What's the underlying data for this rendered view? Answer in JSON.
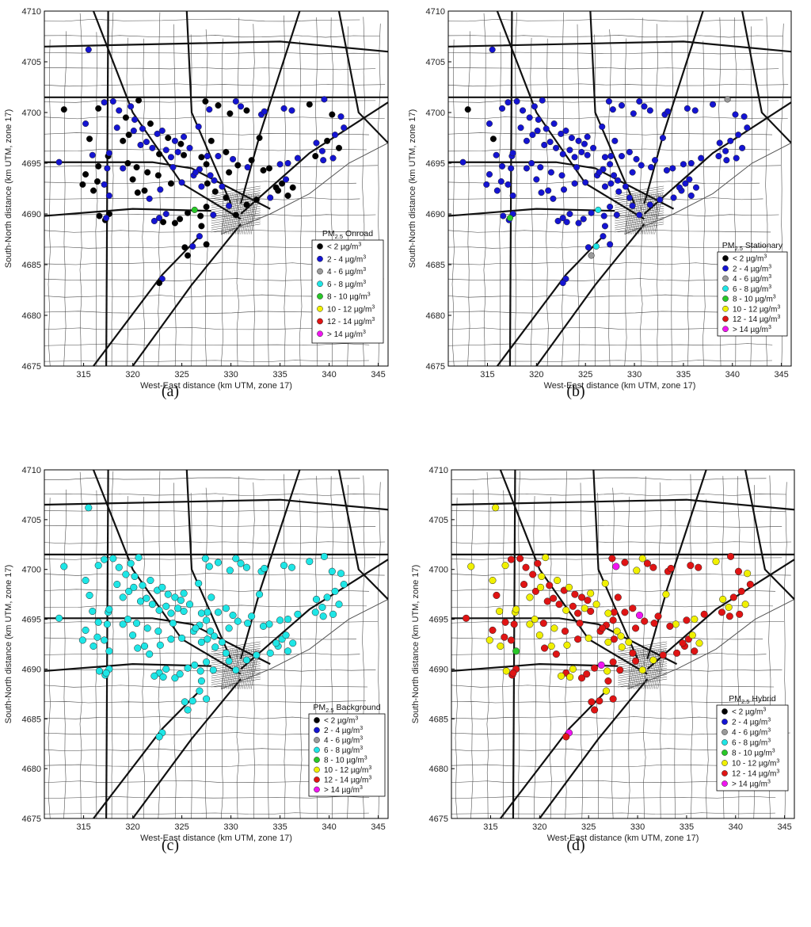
{
  "units_label": "µg/m",
  "units_power": "3",
  "pollutant": "PM",
  "pollutant_sub": "2.5",
  "axis": {
    "xlabel": "West-East distance (km UTM, zone 17)",
    "ylabel": "South-North distance (km UTM, zone 17)",
    "xlim": [
      311,
      346
    ],
    "ylim": [
      4675,
      4710
    ],
    "xticks": [
      315,
      320,
      325,
      330,
      335,
      340,
      345
    ],
    "yticks": [
      4675,
      4680,
      4685,
      4690,
      4695,
      4700,
      4705,
      4710
    ]
  },
  "legend_bins": [
    {
      "text": "< 2 ",
      "color": "#000000"
    },
    {
      "text": "2 - 4 ",
      "color": "#1414d2"
    },
    {
      "text": "4 - 6 ",
      "color": "#9a9a9a"
    },
    {
      "text": "6 - 8 ",
      "color": "#1ee6e6"
    },
    {
      "text": "8 - 10 ",
      "color": "#28c828"
    },
    {
      "text": "10 - 12 ",
      "color": "#f0f000"
    },
    {
      "text": "12 - 14 ",
      "color": "#e01414"
    },
    {
      "text": "> 14 ",
      "color": "#f014f0"
    }
  ],
  "panels": [
    {
      "label": "(a)",
      "title_suffix": " Onroad",
      "seed": 11
    },
    {
      "label": "(b)",
      "title_suffix": " Stationary",
      "seed": 23
    },
    {
      "label": "(c)",
      "title_suffix": " Background",
      "seed": 37
    },
    {
      "label": "(d)",
      "title_suffix": " Hybrid",
      "seed": 53
    }
  ],
  "receptor_sites": [
    [
      315.5,
      4706.2
    ],
    [
      313.0,
      4700.3
    ],
    [
      315.2,
      4698.9
    ],
    [
      315.6,
      4697.4
    ],
    [
      316.5,
      4700.4
    ],
    [
      317.1,
      4701.0
    ],
    [
      318.0,
      4701.1
    ],
    [
      318.6,
      4700.2
    ],
    [
      319.3,
      4699.5
    ],
    [
      319.8,
      4700.6
    ],
    [
      320.2,
      4699.3
    ],
    [
      320.6,
      4701.2
    ],
    [
      321.0,
      4698.4
    ],
    [
      321.8,
      4698.9
    ],
    [
      322.5,
      4697.9
    ],
    [
      323.0,
      4698.2
    ],
    [
      323.6,
      4697.5
    ],
    [
      324.3,
      4697.2
    ],
    [
      324.9,
      4696.9
    ],
    [
      325.2,
      4697.6
    ],
    [
      325.8,
      4696.5
    ],
    [
      323.4,
      4696.3
    ],
    [
      322.7,
      4695.9
    ],
    [
      322.0,
      4696.5
    ],
    [
      321.4,
      4697.1
    ],
    [
      320.8,
      4696.8
    ],
    [
      315.9,
      4695.8
    ],
    [
      316.5,
      4694.7
    ],
    [
      317.5,
      4695.7
    ],
    [
      317.4,
      4694.5
    ],
    [
      315.2,
      4693.9
    ],
    [
      314.9,
      4692.9
    ],
    [
      316.0,
      4692.3
    ],
    [
      316.4,
      4693.2
    ],
    [
      317.1,
      4692.9
    ],
    [
      317.6,
      4691.8
    ],
    [
      316.6,
      4689.8
    ],
    [
      317.2,
      4689.4
    ],
    [
      317.6,
      4690.0
    ],
    [
      317.3,
      4689.6
    ],
    [
      319.0,
      4694.5
    ],
    [
      319.5,
      4695.0
    ],
    [
      320.4,
      4694.6
    ],
    [
      320.0,
      4693.4
    ],
    [
      321.2,
      4692.3
    ],
    [
      320.5,
      4692.1
    ],
    [
      321.5,
      4694.1
    ],
    [
      322.6,
      4693.8
    ],
    [
      322.8,
      4692.4
    ],
    [
      323.9,
      4693.0
    ],
    [
      324.1,
      4694.6
    ],
    [
      325.0,
      4693.1
    ],
    [
      322.7,
      4689.6
    ],
    [
      322.2,
      4689.3
    ],
    [
      323.4,
      4690.0
    ],
    [
      323.1,
      4689.2
    ],
    [
      324.3,
      4689.1
    ],
    [
      324.8,
      4689.5
    ],
    [
      325.6,
      4690.1
    ],
    [
      326.3,
      4690.4
    ],
    [
      326.9,
      4689.8
    ],
    [
      327.5,
      4690.7
    ],
    [
      328.2,
      4689.9
    ],
    [
      327.0,
      4688.8
    ],
    [
      326.8,
      4687.8
    ],
    [
      326.1,
      4686.8
    ],
    [
      325.6,
      4685.9
    ],
    [
      325.3,
      4686.7
    ],
    [
      327.5,
      4687.0
    ],
    [
      323.0,
      4683.6
    ],
    [
      322.7,
      4683.2
    ],
    [
      312.5,
      4695.1
    ],
    [
      327.4,
      4701.1
    ],
    [
      327.8,
      4700.3
    ],
    [
      328.7,
      4700.7
    ],
    [
      329.9,
      4699.9
    ],
    [
      330.5,
      4701.1
    ],
    [
      331.0,
      4700.6
    ],
    [
      331.6,
      4700.2
    ],
    [
      333.1,
      4699.8
    ],
    [
      333.4,
      4700.1
    ],
    [
      335.4,
      4700.4
    ],
    [
      336.2,
      4700.2
    ],
    [
      338.0,
      4700.8
    ],
    [
      339.5,
      4701.3
    ],
    [
      340.3,
      4699.8
    ],
    [
      341.2,
      4699.6
    ],
    [
      341.5,
      4698.5
    ],
    [
      340.6,
      4697.8
    ],
    [
      339.8,
      4697.2
    ],
    [
      339.3,
      4696.2
    ],
    [
      338.7,
      4697.0
    ],
    [
      338.6,
      4695.7
    ],
    [
      339.4,
      4695.3
    ],
    [
      340.4,
      4695.5
    ],
    [
      341.0,
      4696.5
    ],
    [
      336.8,
      4695.5
    ],
    [
      335.8,
      4695.0
    ],
    [
      335.0,
      4694.9
    ],
    [
      333.9,
      4694.5
    ],
    [
      333.3,
      4694.3
    ],
    [
      332.1,
      4695.3
    ],
    [
      331.7,
      4694.6
    ],
    [
      329.5,
      4696.1
    ],
    [
      328.7,
      4695.7
    ],
    [
      327.6,
      4695.7
    ],
    [
      327.0,
      4695.6
    ],
    [
      327.5,
      4694.9
    ],
    [
      327.9,
      4693.8
    ],
    [
      328.3,
      4693.3
    ],
    [
      327.6,
      4693.0
    ],
    [
      327.0,
      4692.7
    ],
    [
      326.2,
      4693.8
    ],
    [
      326.8,
      4694.4
    ],
    [
      328.4,
      4692.2
    ],
    [
      329.1,
      4692.7
    ],
    [
      329.5,
      4691.6
    ],
    [
      329.8,
      4690.8
    ],
    [
      330.5,
      4689.9
    ],
    [
      331.6,
      4690.9
    ],
    [
      332.6,
      4691.4
    ],
    [
      334.0,
      4691.6
    ],
    [
      334.8,
      4692.3
    ],
    [
      335.2,
      4693.0
    ],
    [
      335.6,
      4693.4
    ],
    [
      336.3,
      4692.6
    ],
    [
      335.8,
      4691.8
    ],
    [
      334.6,
      4692.6
    ],
    [
      330.2,
      4695.4
    ],
    [
      330.7,
      4694.8
    ],
    [
      329.8,
      4694.1
    ],
    [
      319.0,
      4697.2
    ],
    [
      318.4,
      4698.5
    ],
    [
      319.6,
      4697.8
    ],
    [
      320.1,
      4698.2
    ],
    [
      317.6,
      4696.0
    ],
    [
      324.6,
      4696.1
    ],
    [
      323.9,
      4695.6
    ],
    [
      325.2,
      4695.8
    ],
    [
      326.4,
      4694.1
    ],
    [
      321.7,
      4691.5
    ],
    [
      326.7,
      4698.6
    ],
    [
      328.0,
      4697.2
    ],
    [
      332.9,
      4697.5
    ]
  ]
}
